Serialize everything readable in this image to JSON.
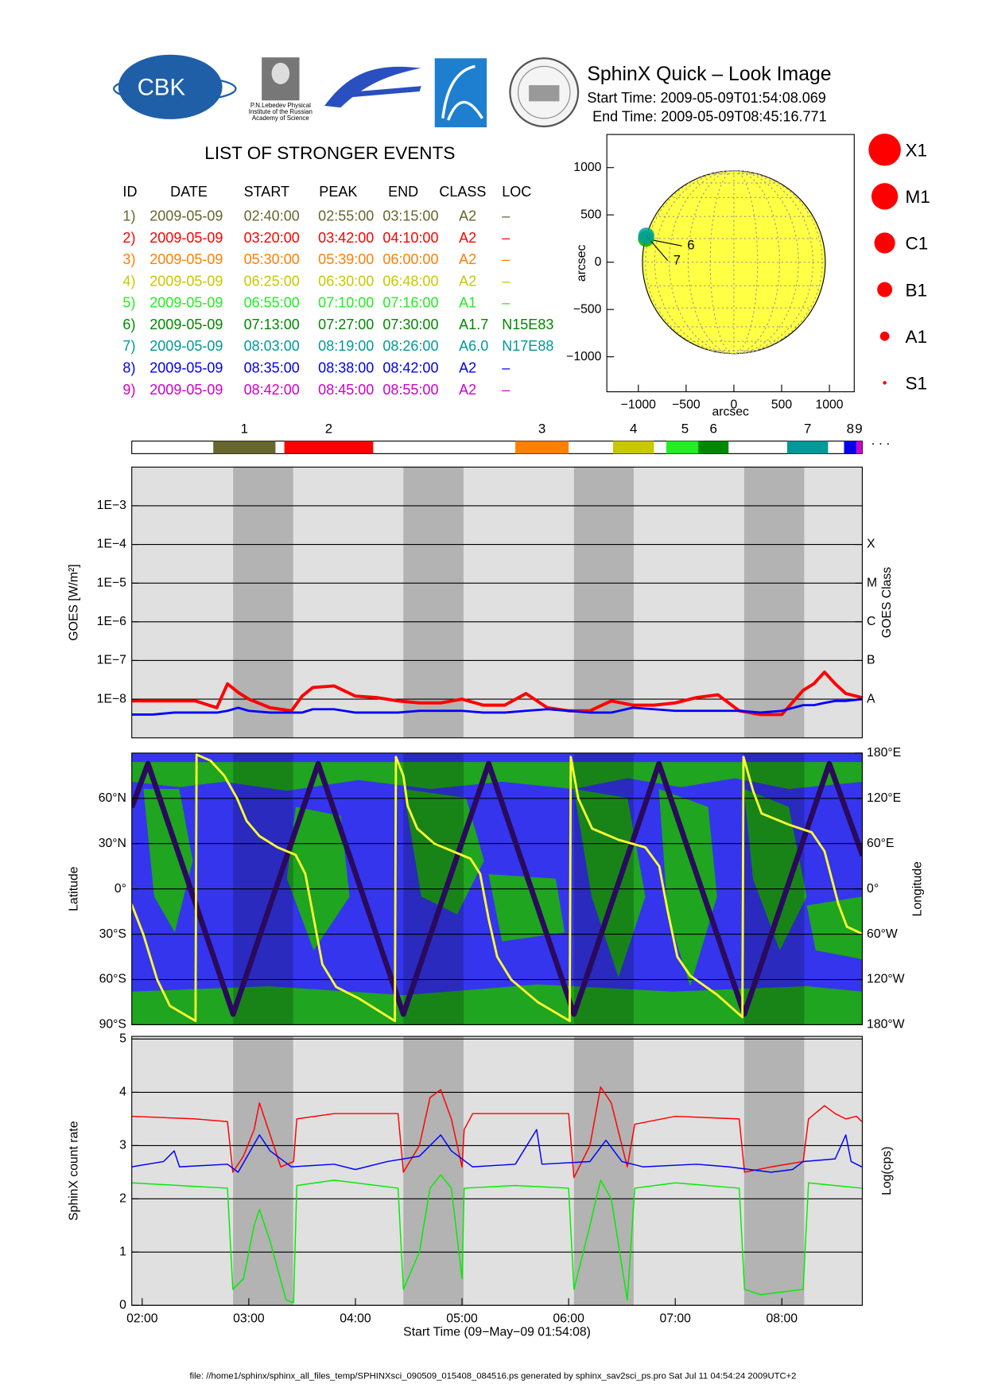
{
  "header": {
    "title": "SphinX Quick – Look Image",
    "start_time": "Start Time: 2009-05-09T01:54:08.069",
    "end_time": "End Time: 2009-05-09T08:45:16.771",
    "logo_text": "CBK",
    "institute_lines": [
      "P.N.Lebedev Physical",
      "Institute of the Russian",
      "Academy of Science"
    ]
  },
  "events": {
    "title": "LIST OF STRONGER EVENTS",
    "columns": [
      "ID",
      "DATE",
      "START",
      "PEAK",
      "END",
      "CLASS",
      "LOC"
    ],
    "rows": [
      {
        "cells": [
          "1)",
          "2009-05-09",
          "02:40:00",
          "02:55:00",
          "03:15:00",
          "A2",
          "–"
        ],
        "color": "#66662e"
      },
      {
        "cells": [
          "2)",
          "2009-05-09",
          "03:20:00",
          "03:42:00",
          "04:10:00",
          "A2",
          "–"
        ],
        "color": "#ff0000"
      },
      {
        "cells": [
          "3)",
          "2009-05-09",
          "05:30:00",
          "05:39:00",
          "06:00:00",
          "A2",
          "–"
        ],
        "color": "#ff7f00"
      },
      {
        "cells": [
          "4)",
          "2009-05-09",
          "06:25:00",
          "06:30:00",
          "06:48:00",
          "A2",
          "–"
        ],
        "color": "#c8c800"
      },
      {
        "cells": [
          "5)",
          "2009-05-09",
          "06:55:00",
          "07:10:00",
          "07:16:00",
          "A1",
          "–"
        ],
        "color": "#22ee22"
      },
      {
        "cells": [
          "6)",
          "2009-05-09",
          "07:13:00",
          "07:27:00",
          "07:30:00",
          "A1.7",
          "N15E83"
        ],
        "color": "#008800"
      },
      {
        "cells": [
          "7)",
          "2009-05-09",
          "08:03:00",
          "08:19:00",
          "08:26:00",
          "A6.0",
          "N17E88"
        ],
        "color": "#009999"
      },
      {
        "cells": [
          "8)",
          "2009-05-09",
          "08:35:00",
          "08:38:00",
          "08:42:00",
          "A2",
          "–"
        ],
        "color": "#0000ee"
      },
      {
        "cells": [
          "9)",
          "2009-05-09",
          "08:42:00",
          "08:45:00",
          "08:55:00",
          "A2",
          "–"
        ],
        "color": "#cc00cc"
      }
    ]
  },
  "timeline": {
    "labels": [
      "1",
      "2",
      "3",
      "4",
      "5",
      "6",
      "7",
      "8",
      "9"
    ],
    "more": ". . ."
  },
  "footer": "file: //home1/sphinx/sphinx_all_files_temp/SPHINXsci_090509_015408_084516.ps generated by sphinx_sav2sci_ps.pro Sat Jul 11 04:54:24 2009UTC+2",
  "chart_data": [
    {
      "type": "scatter",
      "xlabel": "arcsec",
      "ylabel": "arcsec",
      "xlim": [
        -1330,
        1260
      ],
      "ylim": [
        -1370,
        1350
      ],
      "xticks": [
        {
          "value": -1000,
          "label": "−1000"
        },
        {
          "value": -500,
          "label": "−500"
        },
        0,
        500,
        1000
      ],
      "yticks": [
        {
          "value": -1000,
          "label": "−1000"
        },
        {
          "value": -500,
          "label": "−500"
        },
        0,
        500,
        1000
      ],
      "series": [
        {
          "name": "6",
          "color": "#00aa00",
          "x": [
            -920
          ],
          "values": [
            248
          ]
        },
        {
          "name": "7",
          "color": "#00a0a0",
          "x": [
            -917
          ],
          "values": [
            281
          ]
        }
      ],
      "size_legend": [
        "X1",
        "M1",
        "C1",
        "B1",
        "A1",
        "S1"
      ],
      "size_legend_color": "#ff0000"
    },
    {
      "type": "line",
      "ylabel": "GOES [W/m²]",
      "y2label": "GOES Class",
      "ylog": true,
      "grid": true,
      "background": "#e0e0e0",
      "xlim": [
        1.9022,
        8.7545
      ],
      "ylim": [
        1e-09,
        0.01
      ],
      "yticks": [
        {
          "value": 0.001,
          "label": "1E−3"
        },
        {
          "value": 0.0001,
          "label": "1E−4"
        },
        {
          "value": 1e-05,
          "label": "1E−5"
        },
        {
          "value": 1e-06,
          "label": "1E−6"
        },
        {
          "value": 1e-07,
          "label": "1E−7"
        },
        {
          "value": 1e-08,
          "label": "1E−8"
        }
      ],
      "y2lim": [
        1e-09,
        0.01
      ],
      "y2ticks": [
        {
          "value": 0.0001,
          "label": "X"
        },
        {
          "value": 1e-05,
          "label": "M"
        },
        {
          "value": 1e-06,
          "label": "C"
        },
        {
          "value": 1e-07,
          "label": "B"
        },
        {
          "value": 1e-08,
          "label": "A"
        }
      ],
      "bands": [
        [
          2.853,
          3.416
        ],
        [
          4.45,
          5.014
        ],
        [
          6.05,
          6.61
        ],
        [
          7.647,
          8.21
        ]
      ],
      "x": [
        1.9,
        2.1,
        2.3,
        2.5,
        2.7,
        2.8,
        2.9,
        3.0,
        3.2,
        3.4,
        3.5,
        3.6,
        3.8,
        4.0,
        4.2,
        4.4,
        4.6,
        4.8,
        5.0,
        5.2,
        5.4,
        5.6,
        5.8,
        6.0,
        6.2,
        6.4,
        6.6,
        6.8,
        7.0,
        7.2,
        7.4,
        7.6,
        7.8,
        8.0,
        8.2,
        8.3,
        8.4,
        8.5,
        8.6,
        8.75
      ],
      "series": [
        {
          "color": "#ff0000",
          "width": 3.5,
          "values": [
            9e-09,
            9e-09,
            9e-09,
            9e-09,
            6e-09,
            2.5e-08,
            1.5e-08,
            1e-08,
            6e-09,
            5e-09,
            1.2e-08,
            2e-08,
            2.2e-08,
            1.2e-08,
            1.1e-08,
            9e-09,
            8e-09,
            8e-09,
            1e-08,
            7e-09,
            7e-09,
            1.4e-08,
            6e-09,
            5e-09,
            5e-09,
            9e-09,
            7e-09,
            7e-09,
            8e-09,
            1.1e-08,
            1.3e-08,
            5e-09,
            4e-09,
            4e-09,
            1.7e-08,
            2.5e-08,
            5e-08,
            2.5e-08,
            1.4e-08,
            1.1e-08
          ]
        },
        {
          "color": "#0000ff",
          "width": 2.5,
          "values": [
            4e-09,
            4e-09,
            4.5e-09,
            4.5e-09,
            4.5e-09,
            5e-09,
            6e-09,
            5e-09,
            4.5e-09,
            4.5e-09,
            4.5e-09,
            5.5e-09,
            5.5e-09,
            4.5e-09,
            4.5e-09,
            4.5e-09,
            5e-09,
            5e-09,
            5e-09,
            4.5e-09,
            4.5e-09,
            5e-09,
            5.5e-09,
            5e-09,
            4.5e-09,
            4.5e-09,
            6e-09,
            5.5e-09,
            5e-09,
            5e-09,
            5e-09,
            5e-09,
            4.5e-09,
            5e-09,
            7e-09,
            7e-09,
            8e-09,
            9e-09,
            9e-09,
            1e-08
          ]
        }
      ]
    },
    {
      "type": "line",
      "ylabel": "Latitude",
      "y2label": "Longitude",
      "grid": true,
      "background": "#3535ee",
      "xlim": [
        1.9022,
        8.7545
      ],
      "ylim": [
        -90,
        90
      ],
      "yticks": [
        {
          "value": 60,
          "label": "60°N"
        },
        {
          "value": 30,
          "label": "30°N"
        },
        {
          "value": 0,
          "label": "0°"
        },
        {
          "value": -30,
          "label": "30°S"
        },
        {
          "value": -60,
          "label": "60°S"
        },
        {
          "value": -90,
          "label": "90°S"
        }
      ],
      "y2lim": [
        -180,
        180
      ],
      "y2ticks": [
        {
          "value": 180,
          "label": "180°E"
        },
        {
          "value": 120,
          "label": "120°E"
        },
        {
          "value": 60,
          "label": "60°E"
        },
        {
          "value": 0,
          "label": "0°"
        },
        {
          "value": -60,
          "label": "60°W"
        },
        {
          "value": -120,
          "label": "120°W"
        },
        {
          "value": -180,
          "label": "180°W"
        }
      ],
      "bands": [
        [
          2.853,
          3.416
        ],
        [
          4.45,
          5.014
        ],
        [
          6.05,
          6.61
        ],
        [
          7.647,
          8.21
        ]
      ],
      "series": [
        {
          "color": "#2a0a5c",
          "width": 6,
          "x": [
            1.902,
            2.054,
            2.853,
            3.651,
            4.45,
            5.25,
            6.05,
            6.847,
            7.647,
            8.445,
            8.757
          ],
          "values": [
            54,
            83,
            -83,
            83,
            -83,
            83,
            -83,
            83,
            -83,
            83,
            22
          ]
        },
        {
          "color": "#ffff33",
          "width": 2.5,
          "axis": "y2",
          "x": [
            1.9,
            2.01,
            2.14,
            2.26,
            2.5,
            2.51,
            2.64,
            2.77,
            2.89,
            2.98,
            3.1,
            3.27,
            3.44,
            3.53,
            3.61,
            3.69,
            3.82,
            4.03,
            4.37,
            4.38,
            4.45,
            4.49,
            4.58,
            4.74,
            4.91,
            5.08,
            5.17,
            5.25,
            5.33,
            5.46,
            5.71,
            6.01,
            6.02,
            6.09,
            6.22,
            6.47,
            6.72,
            6.85,
            6.93,
            7.02,
            7.14,
            7.39,
            7.63,
            7.64,
            7.73,
            7.81,
            8.07,
            8.28,
            8.4,
            8.53,
            8.61,
            8.76
          ],
          "values": [
            -20,
            -60,
            -120,
            -155,
            -175,
            178,
            170,
            150,
            120,
            90,
            70,
            55,
            45,
            20,
            -40,
            -100,
            -130,
            -145,
            -175,
            175,
            150,
            110,
            80,
            60,
            50,
            40,
            20,
            -40,
            -90,
            -120,
            -150,
            -175,
            175,
            120,
            80,
            65,
            55,
            30,
            -30,
            -90,
            -115,
            -140,
            -170,
            175,
            130,
            100,
            85,
            75,
            50,
            -20,
            -50,
            -60
          ]
        }
      ]
    },
    {
      "type": "line",
      "ylabel": "SphinX count rate",
      "y2label": "Log(cps)",
      "xlabel": "Start Time (09−May−09 01:54:08)",
      "grid": true,
      "background": "#e0e0e0",
      "xlim": [
        1.9022,
        8.7545
      ],
      "ylim": [
        0,
        5.05
      ],
      "yticks": [
        0,
        1,
        2,
        3,
        4,
        5
      ],
      "xticks": [
        {
          "value": 2,
          "label": "02:00"
        },
        {
          "value": 3,
          "label": "03:00"
        },
        {
          "value": 4,
          "label": "04:00"
        },
        {
          "value": 5,
          "label": "05:00"
        },
        {
          "value": 6,
          "label": "06:00"
        },
        {
          "value": 7,
          "label": "07:00"
        },
        {
          "value": 8,
          "label": "08:00"
        }
      ],
      "bands": [
        [
          2.853,
          3.416
        ],
        [
          4.45,
          5.014
        ],
        [
          6.05,
          6.61
        ],
        [
          7.647,
          8.21
        ]
      ],
      "series": [
        {
          "color": "#ff0000",
          "width": 1.3,
          "x": [
            1.9,
            2.5,
            2.8,
            2.85,
            2.95,
            3.05,
            3.1,
            3.15,
            3.3,
            3.42,
            3.45,
            3.8,
            4.4,
            4.45,
            4.6,
            4.7,
            4.8,
            4.9,
            5.0,
            5.02,
            5.1,
            5.5,
            6.0,
            6.05,
            6.2,
            6.3,
            6.4,
            6.55,
            6.62,
            7.0,
            7.6,
            7.65,
            7.9,
            8.2,
            8.25,
            8.4,
            8.5,
            8.6,
            8.7,
            8.75
          ],
          "values": [
            3.55,
            3.5,
            3.45,
            2.5,
            2.8,
            3.3,
            3.8,
            3.5,
            2.6,
            2.7,
            3.5,
            3.6,
            3.6,
            2.5,
            3.0,
            3.9,
            4.05,
            3.5,
            2.6,
            3.3,
            3.6,
            3.6,
            3.6,
            2.4,
            3.0,
            4.1,
            3.8,
            2.6,
            3.4,
            3.55,
            3.5,
            2.5,
            2.6,
            2.7,
            3.5,
            3.75,
            3.6,
            3.5,
            3.55,
            3.45
          ]
        },
        {
          "color": "#0000ff",
          "width": 1.3,
          "x": [
            1.9,
            2.2,
            2.3,
            2.35,
            2.8,
            2.9,
            3.1,
            3.2,
            3.4,
            3.8,
            4.0,
            4.3,
            4.6,
            4.8,
            4.9,
            5.1,
            5.5,
            5.7,
            5.75,
            6.2,
            6.35,
            6.5,
            6.7,
            7.2,
            7.5,
            7.9,
            8.1,
            8.2,
            8.5,
            8.6,
            8.65,
            8.75
          ],
          "values": [
            2.6,
            2.7,
            2.9,
            2.6,
            2.65,
            2.5,
            3.2,
            2.9,
            2.6,
            2.65,
            2.55,
            2.7,
            2.8,
            3.2,
            2.9,
            2.6,
            2.65,
            3.3,
            2.65,
            2.7,
            3.1,
            2.7,
            2.6,
            2.65,
            2.6,
            2.5,
            2.55,
            2.7,
            2.75,
            3.2,
            2.7,
            2.6
          ]
        },
        {
          "color": "#00ee00",
          "width": 1.3,
          "x": [
            1.9,
            2.8,
            2.85,
            2.95,
            3.05,
            3.1,
            3.2,
            3.35,
            3.42,
            3.45,
            3.8,
            4.4,
            4.45,
            4.6,
            4.7,
            4.8,
            4.9,
            5.0,
            5.02,
            5.5,
            6.0,
            6.05,
            6.2,
            6.3,
            6.4,
            6.55,
            6.62,
            7.0,
            7.6,
            7.65,
            7.8,
            8.2,
            8.25,
            8.5,
            8.75
          ],
          "values": [
            2.3,
            2.2,
            0.3,
            0.5,
            1.5,
            1.8,
            1.2,
            0.1,
            0.05,
            2.25,
            2.35,
            2.2,
            0.3,
            1.0,
            2.2,
            2.45,
            2.2,
            0.5,
            2.2,
            2.25,
            2.2,
            0.3,
            1.5,
            2.35,
            2.0,
            0.1,
            2.2,
            2.3,
            2.2,
            0.3,
            0.2,
            0.3,
            2.3,
            2.25,
            2.2
          ]
        }
      ]
    }
  ]
}
